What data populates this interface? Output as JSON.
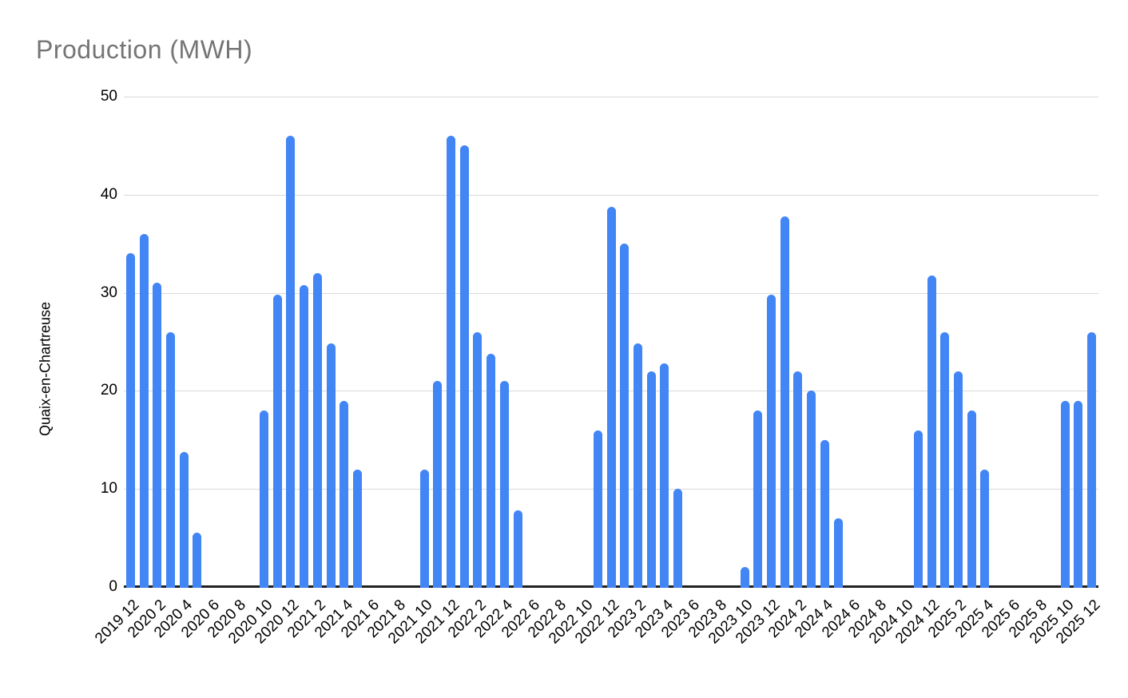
{
  "chart_data": {
    "type": "bar",
    "title": "Production (MWH)",
    "xlabel": "",
    "ylabel": "Quaix-en-Chartreuse",
    "ylim": [
      0,
      50
    ],
    "yticks": [
      0,
      10,
      20,
      30,
      40,
      50
    ],
    "x_tick_label_every": 2,
    "grid": true,
    "legend_position": "none",
    "bar_color": "#4285f4",
    "title_color": "#757575",
    "gridline_color": "#d9d9d9",
    "axis_line_color": "#212121",
    "axis_text_color": "#000000",
    "categories": [
      "2019 12",
      "2020 1",
      "2020 2",
      "2020 3",
      "2020 4",
      "2020 5",
      "2020 6",
      "2020 7",
      "2020 8",
      "2020 9",
      "2020 10",
      "2020 11",
      "2020 12",
      "2021 1",
      "2021 2",
      "2021 3",
      "2021 4",
      "2021 5",
      "2021 6",
      "2021 7",
      "2021 8",
      "2021 9",
      "2021 10",
      "2021 11",
      "2021 12",
      "2022 1",
      "2022 2",
      "2022 3",
      "2022 4",
      "2022 5",
      "2022 6",
      "2022 7",
      "2022 8",
      "2022 9",
      "2022 10",
      "2022 11",
      "2022 12",
      "2023 1",
      "2023 2",
      "2023 3",
      "2023 4",
      "2023 5",
      "2023 6",
      "2023 7",
      "2023 8",
      "2023 9",
      "2023 10",
      "2023 11",
      "2023 12",
      "2024 1",
      "2024 2",
      "2024 3",
      "2024 4",
      "2024 5",
      "2024 6",
      "2024 7",
      "2024 8",
      "2024 9",
      "2024 10",
      "2024 11",
      "2024 12",
      "2025 1",
      "2025 2",
      "2025 3",
      "2025 4",
      "2025 5",
      "2025 6",
      "2025 7",
      "2025 8",
      "2025 9",
      "2025 10",
      "2025 11",
      "2025 12"
    ],
    "values": [
      34,
      36,
      31,
      26,
      13.8,
      5.5,
      0,
      0,
      0,
      0,
      18,
      29.8,
      46,
      30.8,
      32,
      24.8,
      19,
      12,
      0,
      0,
      0,
      0,
      12,
      21,
      46,
      45,
      26,
      23.8,
      21,
      7.8,
      0,
      0,
      0,
      0,
      0,
      16,
      38.8,
      35,
      24.8,
      22,
      22.8,
      10,
      0,
      0,
      0,
      0,
      2,
      18,
      29.8,
      37.8,
      22,
      20,
      15,
      7,
      0,
      0,
      0,
      0,
      0,
      16,
      31.8,
      26,
      22,
      18,
      12,
      0,
      0,
      0,
      0,
      0,
      19,
      19,
      26
    ]
  }
}
